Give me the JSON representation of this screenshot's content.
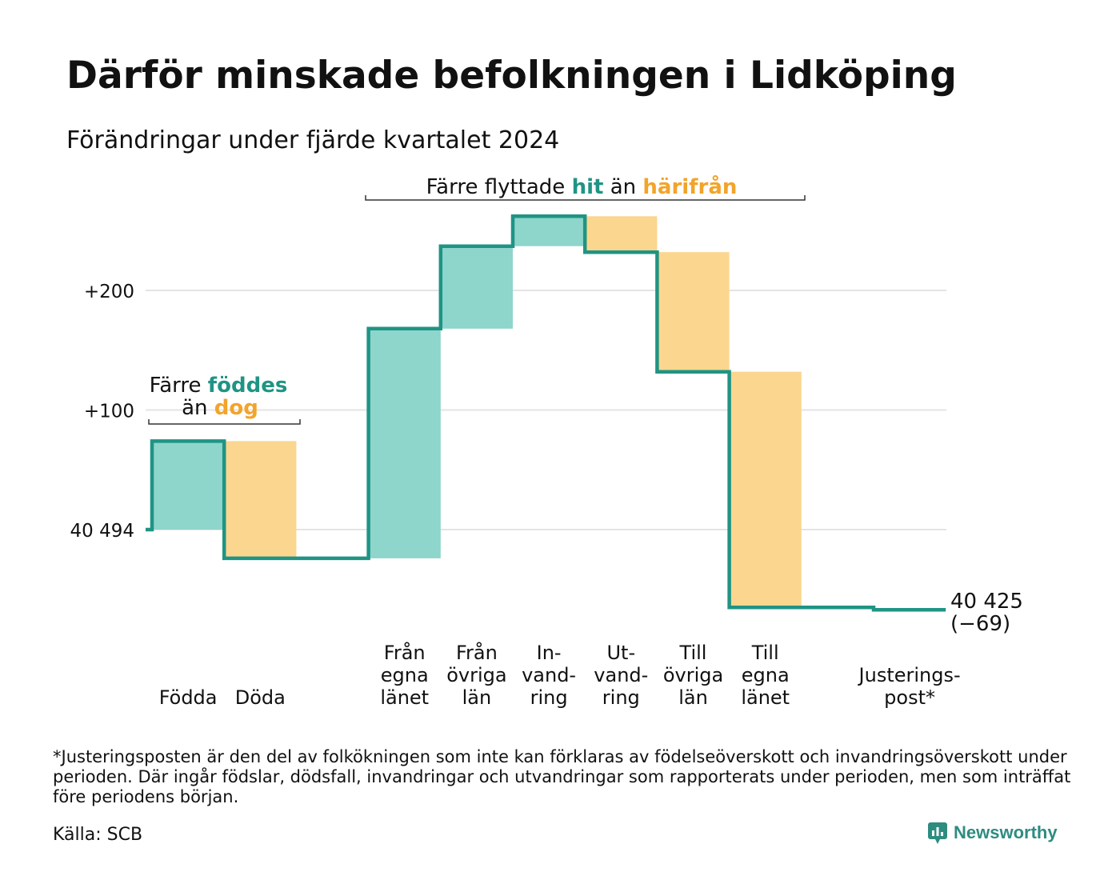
{
  "header": {
    "title": "Därför minskade befolkningen i Lidköping",
    "subtitle": "Förändringar under fjärde kvartalet 2024"
  },
  "colors": {
    "increase": "#8ed5cb",
    "decrease": "#fbd68f",
    "line": "#1f9484",
    "teal_text": "#1f9484",
    "orange_text": "#f2a42a",
    "grid": "#e4e4e4",
    "brand": "#2e8c80"
  },
  "chart_data": {
    "type": "waterfall",
    "baseline_population": 40494,
    "final_population": 40425,
    "yticks": [
      {
        "value": 200,
        "label": "+200"
      },
      {
        "value": 100,
        "label": "+100"
      },
      {
        "value": 0,
        "label": "40 494"
      }
    ],
    "steps": [
      {
        "lines": [
          "Födda"
        ],
        "change": 74,
        "kind": "increase"
      },
      {
        "lines": [
          "Döda"
        ],
        "change": -98,
        "kind": "decrease"
      },
      {
        "lines": [
          ""
        ],
        "change": 0,
        "kind": "gap"
      },
      {
        "lines": [
          "Från",
          "egna",
          "länet"
        ],
        "change": 192,
        "kind": "increase"
      },
      {
        "lines": [
          "Från",
          "övriga",
          "län"
        ],
        "change": 69,
        "kind": "increase"
      },
      {
        "lines": [
          "In-",
          "vand-",
          "ring"
        ],
        "change": 25,
        "kind": "increase"
      },
      {
        "lines": [
          "Ut-",
          "vand-",
          "ring"
        ],
        "change": -30,
        "kind": "decrease"
      },
      {
        "lines": [
          "Till",
          "övriga",
          "län"
        ],
        "change": -100,
        "kind": "decrease"
      },
      {
        "lines": [
          "Till",
          "egna",
          "länet"
        ],
        "change": -197,
        "kind": "decrease"
      },
      {
        "lines": [
          ""
        ],
        "change": 0,
        "kind": "gap"
      },
      {
        "lines": [
          "Justerings-",
          "post*"
        ],
        "change": -2,
        "kind": "adjustment"
      }
    ],
    "end_label": {
      "line1": "40 425",
      "line2": "(−69)"
    },
    "annotations": {
      "birth_death": {
        "line1_plain": "Färre ",
        "line1_bold": "föddes",
        "line2_plain": "än ",
        "line2_bold": "dog"
      },
      "migration": {
        "plain1": "Färre flyttade ",
        "bold1": "hit",
        "plain2": " än ",
        "bold2": "härifrån"
      }
    }
  },
  "footer": {
    "footnote": "*Justeringsposten är den del av folkökningen som inte kan förklaras av födelseöverskott och invandringsöverskott under perioden. Där ingår födslar, dödsfall, invandringar och utvandringar som rapporterats under perioden, men som inträffat före periodens början.",
    "source": "Källa: SCB",
    "brand": "Newsworthy",
    "brand_icon": "newsworthy-bar-chart-icon"
  }
}
